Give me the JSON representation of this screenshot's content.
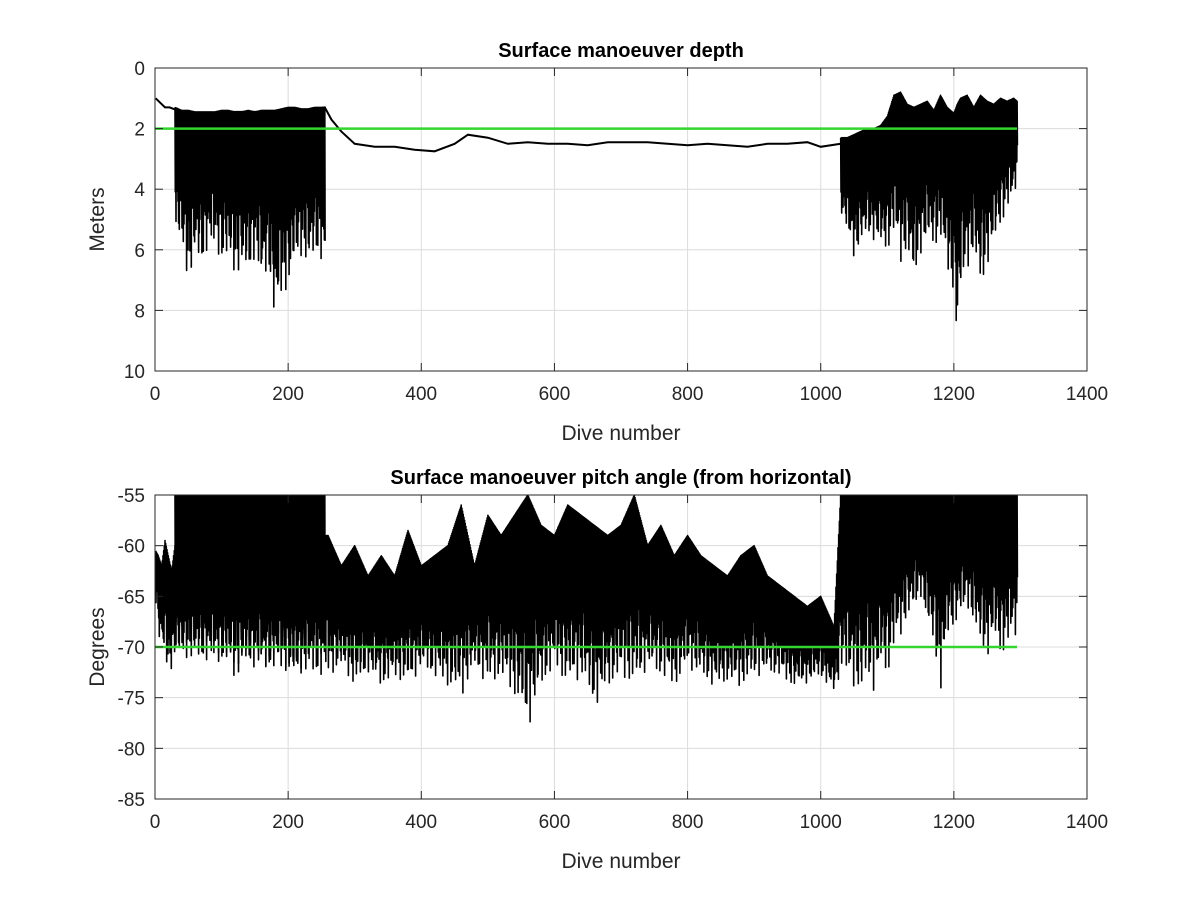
{
  "chart_data": [
    {
      "type": "line",
      "title": "Surface manoeuver depth",
      "xlabel": "Dive number",
      "ylabel": "Meters",
      "xlim": [
        0,
        1400
      ],
      "ylim": [
        0,
        10
      ],
      "y_reversed": true,
      "xticks": [
        "0",
        "200",
        "400",
        "600",
        "800",
        "1000",
        "1200",
        "1400"
      ],
      "yticks": [
        "0",
        "2",
        "4",
        "6",
        "8",
        "10"
      ],
      "xtick_values": [
        0,
        200,
        400,
        600,
        800,
        1000,
        1200,
        1400
      ],
      "ytick_values": [
        0,
        2,
        4,
        6,
        8,
        10
      ],
      "grid": true,
      "reference_line": {
        "y": 2,
        "x_range": [
          0,
          1295
        ],
        "color": "#33d62e"
      },
      "series_color": "#000000",
      "series": [
        {
          "x": [
            1,
            8,
            15,
            22,
            28,
            35,
            60,
            90,
            120,
            150,
            180,
            210,
            240,
            255,
            265,
            280,
            300,
            330,
            360,
            390,
            420,
            450,
            470,
            500,
            530,
            560,
            590,
            620,
            650,
            680,
            710,
            740,
            770,
            800,
            830,
            860,
            890,
            920,
            950,
            980,
            1000,
            1030
          ],
          "y": [
            1.0,
            1.15,
            1.3,
            1.3,
            1.35,
            1.4,
            1.5,
            1.5,
            1.45,
            1.45,
            1.45,
            1.4,
            1.35,
            1.3,
            1.7,
            2.1,
            2.5,
            2.6,
            2.6,
            2.7,
            2.75,
            2.5,
            2.2,
            2.3,
            2.5,
            2.45,
            2.5,
            2.5,
            2.55,
            2.45,
            2.45,
            2.45,
            2.5,
            2.55,
            2.5,
            2.55,
            2.6,
            2.5,
            2.5,
            2.45,
            2.6,
            2.5
          ]
        },
        {
          "x": [
            30,
            40,
            50,
            60,
            70,
            80,
            90,
            100,
            110,
            120,
            130,
            140,
            150,
            160,
            170,
            180,
            190,
            200,
            210,
            220,
            230,
            240,
            250,
            255
          ],
          "y_min": [
            1.3,
            1.4,
            1.4,
            1.45,
            1.45,
            1.45,
            1.45,
            1.4,
            1.4,
            1.45,
            1.45,
            1.4,
            1.45,
            1.4,
            1.4,
            1.4,
            1.35,
            1.3,
            1.3,
            1.35,
            1.35,
            1.3,
            1.3,
            1.3
          ],
          "y_max": [
            5.5,
            5.9,
            7.1,
            6.2,
            6.5,
            5.9,
            6.0,
            6.4,
            6.3,
            6.9,
            6.6,
            6.9,
            6.2,
            7.2,
            6.6,
            8.5,
            7.5,
            7.3,
            6.4,
            6.2,
            6.6,
            6.1,
            6.4,
            6.7
          ]
        },
        {
          "x": [
            1030,
            1040,
            1050,
            1060,
            1070,
            1080,
            1090,
            1100,
            1110,
            1120,
            1130,
            1140,
            1150,
            1160,
            1170,
            1180,
            1190,
            1200,
            1205,
            1210,
            1220,
            1230,
            1240,
            1250,
            1260,
            1270,
            1280,
            1290,
            1295
          ],
          "y_min": [
            2.3,
            2.3,
            2.2,
            2.1,
            2.0,
            2.0,
            1.9,
            1.6,
            0.9,
            0.8,
            1.2,
            1.3,
            1.2,
            1.1,
            1.4,
            0.9,
            1.3,
            1.5,
            1.2,
            1.0,
            0.9,
            1.3,
            0.9,
            1.1,
            1.2,
            1.0,
            1.1,
            1.0,
            1.1
          ],
          "y_max": [
            4.8,
            5.5,
            6.3,
            5.8,
            5.5,
            5.7,
            5.9,
            6.1,
            5.4,
            6.5,
            6.0,
            7.2,
            6.1,
            5.7,
            6.0,
            5.6,
            6.8,
            7.6,
            9.2,
            7.5,
            6.6,
            6.1,
            7.4,
            6.5,
            5.8,
            5.2,
            4.7,
            4.3,
            3.6
          ]
        }
      ]
    },
    {
      "type": "line",
      "title": "Surface manoeuver pitch angle (from horizontal)",
      "xlabel": "Dive number",
      "ylabel": "Degrees",
      "xlim": [
        0,
        1400
      ],
      "ylim": [
        -85,
        -55
      ],
      "xticks": [
        "0",
        "200",
        "400",
        "600",
        "800",
        "1000",
        "1200",
        "1400"
      ],
      "yticks": [
        "-55",
        "-60",
        "-65",
        "-70",
        "-75",
        "-80",
        "-85"
      ],
      "xtick_values": [
        0,
        200,
        400,
        600,
        800,
        1000,
        1200,
        1400
      ],
      "ytick_values": [
        -55,
        -60,
        -65,
        -70,
        -75,
        -80,
        -85
      ],
      "grid": true,
      "reference_line": {
        "y": -70,
        "x_range": [
          0,
          1295
        ],
        "color": "#33d62e"
      },
      "series_color": "#000000",
      "series": [
        {
          "x": [
            1,
            5,
            10,
            15,
            20,
            25,
            30,
            260,
            280,
            300,
            320,
            340,
            360,
            380,
            400,
            420,
            440,
            460,
            480,
            500,
            520,
            540,
            560,
            580,
            600,
            620,
            640,
            660,
            680,
            700,
            720,
            740,
            760,
            780,
            800,
            820,
            840,
            860,
            880,
            900,
            920,
            940,
            960,
            980,
            1000,
            1020,
            1030
          ],
          "y_min": [
            -60.5,
            -61,
            -62,
            -59.5,
            -61,
            -62.5,
            -60,
            -59,
            -62,
            -60,
            -63,
            -61,
            -63,
            -58.5,
            -62,
            -61,
            -60,
            -56,
            -62,
            -57,
            -59,
            -57,
            -55,
            -58,
            -59,
            -56,
            -57,
            -58,
            -59,
            -58,
            -55,
            -60,
            -58,
            -61,
            -59,
            -61,
            -62,
            -63,
            -61,
            -60,
            -63,
            -64,
            -65,
            -66,
            -65,
            -68,
            -55
          ],
          "y_max": [
            -66,
            -69,
            -70,
            -71.5,
            -73,
            -72,
            -71,
            -73,
            -72,
            -74,
            -72.5,
            -74,
            -73,
            -74,
            -72,
            -73,
            -74,
            -75,
            -72,
            -74,
            -73,
            -75,
            -78,
            -74,
            -72,
            -74,
            -73,
            -76,
            -74,
            -73,
            -74,
            -72,
            -73,
            -74,
            -72,
            -73,
            -74,
            -73.5,
            -74,
            -73,
            -72.5,
            -73,
            -74,
            -73.5,
            -73,
            -74.5,
            -73
          ]
        },
        {
          "x": [
            30,
            40,
            50,
            60,
            70,
            80,
            90,
            100,
            110,
            120,
            130,
            140,
            150,
            160,
            170,
            180,
            190,
            200,
            210,
            220,
            230,
            240,
            250,
            255
          ],
          "y_min": [
            -55,
            -55,
            -55,
            -55,
            -55,
            -55,
            -55,
            -55,
            -55,
            -55,
            -55,
            -55,
            -55,
            -55,
            -55,
            -55,
            -55,
            -55,
            -55,
            -55,
            -55,
            -55,
            -55,
            -55
          ],
          "y_max": [
            -69,
            -70,
            -69.5,
            -67,
            -69,
            -70,
            -71,
            -70.5,
            -72,
            -73.5,
            -72,
            -71,
            -70,
            -73,
            -72,
            -71,
            -71,
            -73,
            -74,
            -72,
            -71,
            -70,
            -71,
            -70
          ]
        },
        {
          "x": [
            1030,
            1040,
            1050,
            1060,
            1070,
            1080,
            1090,
            1100,
            1110,
            1120,
            1130,
            1140,
            1150,
            1160,
            1170,
            1180,
            1190,
            1200,
            1210,
            1220,
            1230,
            1240,
            1250,
            1260,
            1270,
            1280,
            1290,
            1295
          ],
          "y_min": [
            -55,
            -55,
            -55,
            -55,
            -55,
            -55,
            -55,
            -55,
            -55,
            -55,
            -55,
            -55,
            -55,
            -55,
            -55,
            -55,
            -55,
            -55,
            -55,
            -55,
            -55,
            -55,
            -55,
            -55,
            -55,
            -55,
            -55,
            -55
          ],
          "y_max": [
            -72,
            -73.5,
            -74,
            -75,
            -73,
            -74.5,
            -72,
            -73,
            -70,
            -69,
            -67,
            -66.5,
            -65,
            -68,
            -70,
            -74.5,
            -69,
            -68,
            -67,
            -66,
            -68,
            -70,
            -71,
            -69,
            -71,
            -70,
            -69,
            -69
          ]
        }
      ]
    }
  ]
}
